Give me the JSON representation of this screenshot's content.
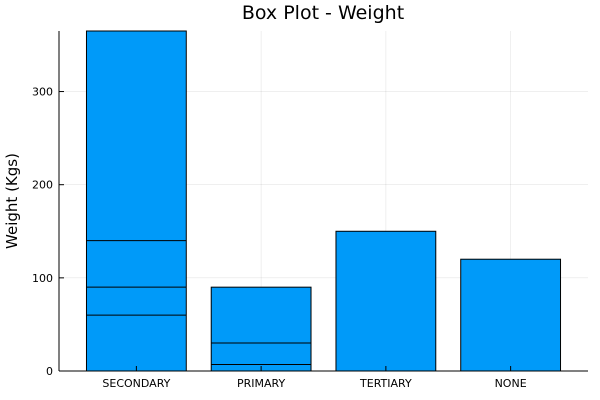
{
  "chart_data": {
    "type": "bar",
    "title": "Box Plot - Weight",
    "xlabel": "",
    "ylabel": "Weight (Kgs)",
    "categories": [
      "SECONDARY",
      "PRIMARY",
      "TERTIARY",
      "NONE"
    ],
    "values": [
      365,
      90,
      150,
      120
    ],
    "inner_lines": [
      [
        60,
        90,
        140
      ],
      [
        7,
        30
      ],
      [],
      []
    ],
    "ylim": [
      0,
      365
    ],
    "yticks": [
      0,
      100,
      200,
      300
    ],
    "grid": true,
    "legend": "none",
    "colors": {
      "bar": "#009AF9",
      "outline": "#000000"
    }
  }
}
